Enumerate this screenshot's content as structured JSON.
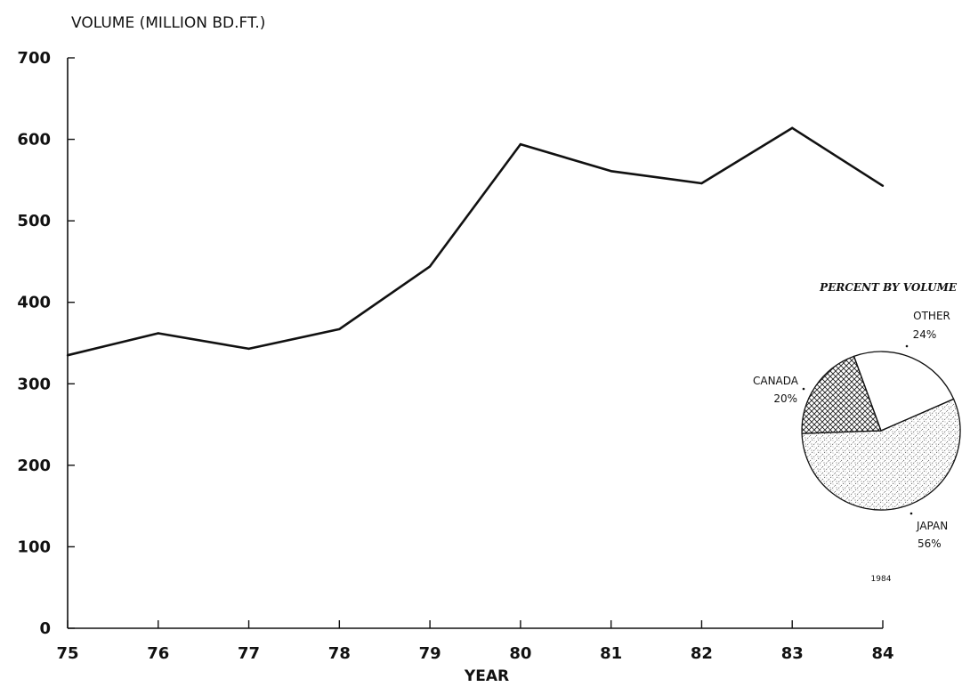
{
  "chart_data": [
    {
      "type": "line",
      "ylabel": "VOLUME (MILLION BD.FT.)",
      "xlabel": "YEAR",
      "x": [
        "75",
        "76",
        "77",
        "78",
        "79",
        "80",
        "81",
        "82",
        "83",
        "84"
      ],
      "series": [
        {
          "values": [
            335,
            362,
            343,
            367,
            444,
            594,
            561,
            546,
            614,
            543
          ]
        }
      ],
      "ylim": [
        0,
        700
      ],
      "yticks": [
        "0",
        "100",
        "200",
        "300",
        "400",
        "500",
        "600",
        "700"
      ],
      "grid": false
    },
    {
      "type": "pie",
      "title": "PERCENT BY VOLUME",
      "caption": "1984",
      "slices": [
        {
          "label": "OTHER",
          "value": 24,
          "value_label": "24%",
          "pattern": "none"
        },
        {
          "label": "JAPAN",
          "value": 56,
          "value_label": "56%",
          "pattern": "dotted-hatch"
        },
        {
          "label": "CANADA",
          "value": 20,
          "value_label": "20%",
          "pattern": "cross-hatch"
        }
      ]
    }
  ]
}
